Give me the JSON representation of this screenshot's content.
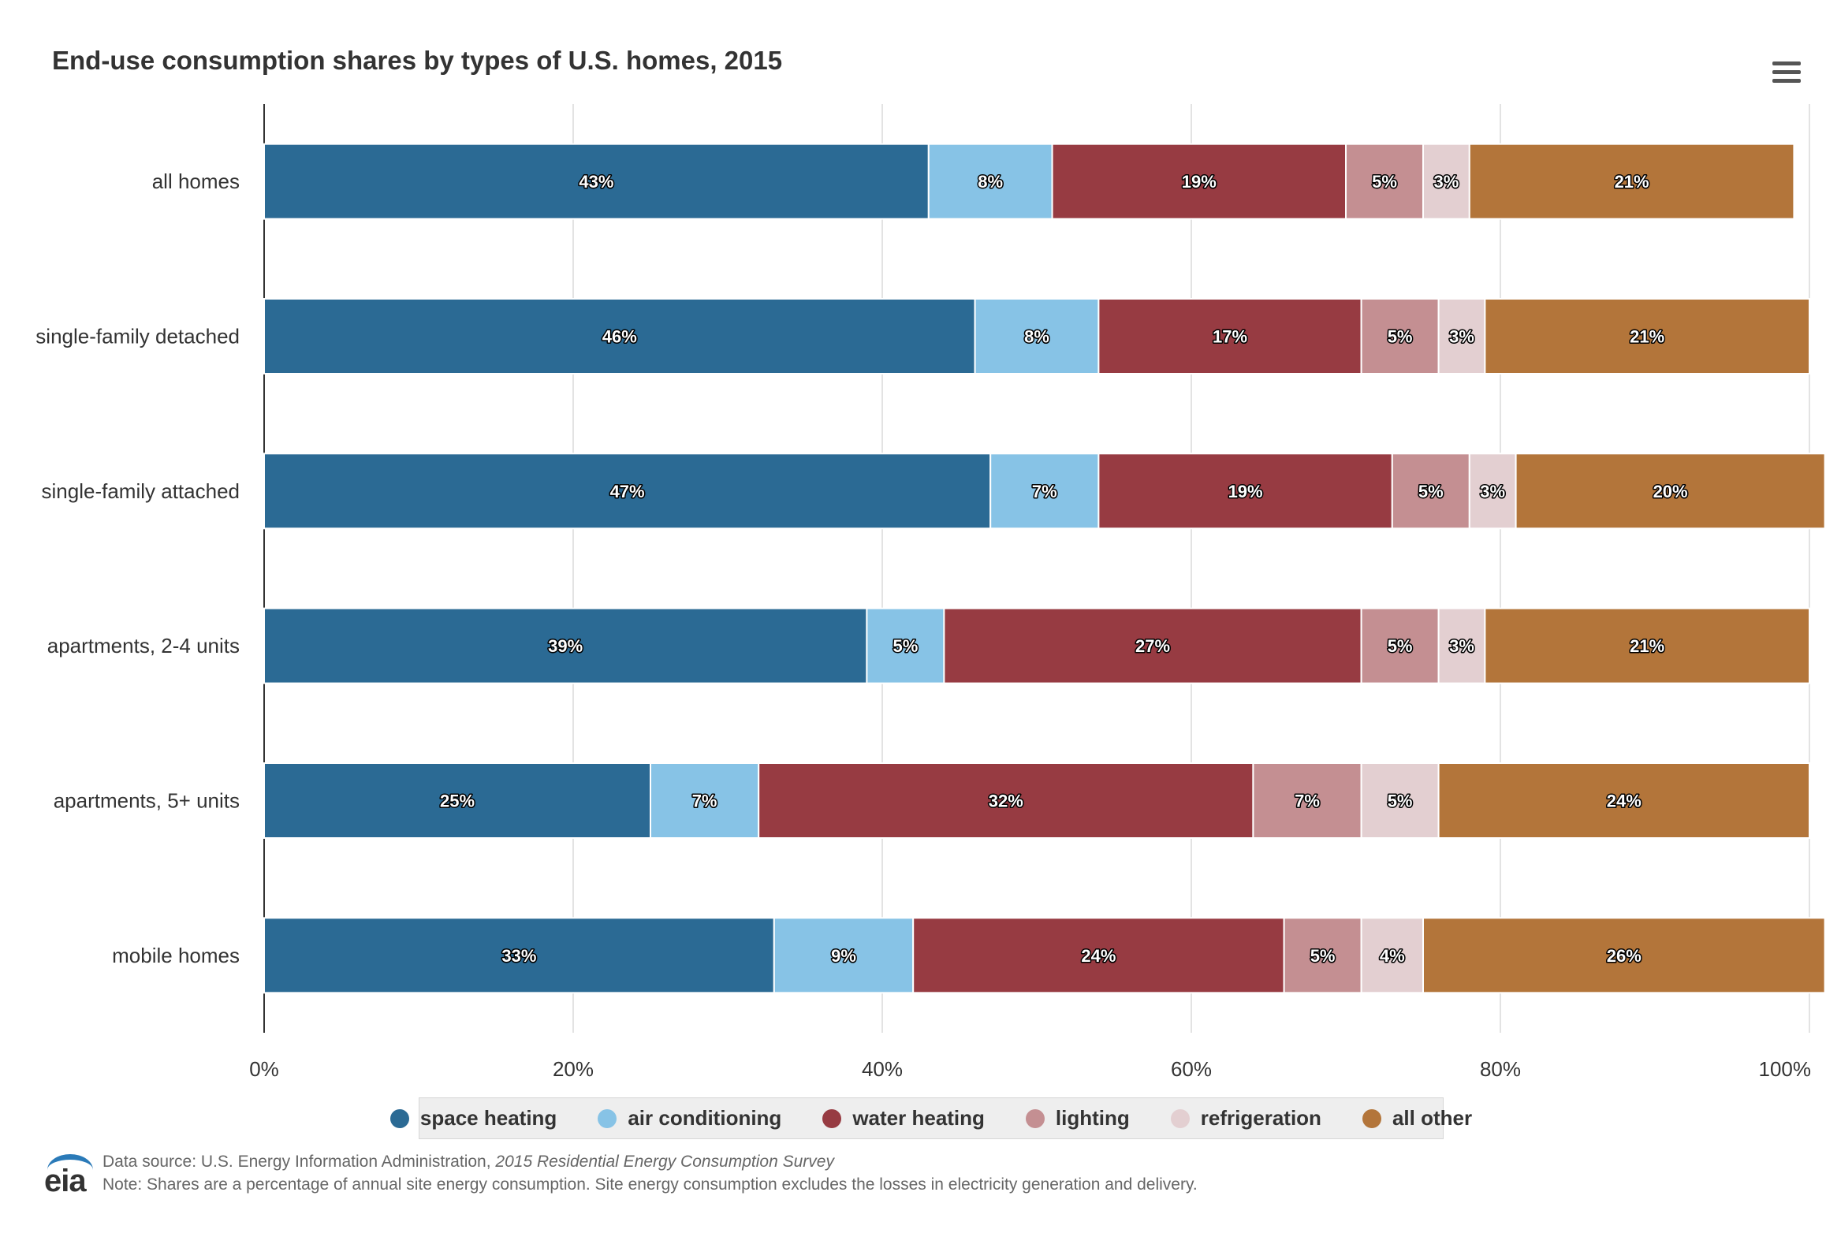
{
  "chart_data": {
    "type": "bar",
    "orientation": "horizontal",
    "stacked": true,
    "title": "End-use consumption shares by types of U.S. homes, 2015",
    "xlabel": "",
    "ylabel": "",
    "xlim": [
      0,
      100
    ],
    "x_ticks": [
      "0%",
      "20%",
      "40%",
      "60%",
      "80%",
      "100%"
    ],
    "grid": true,
    "legend_position": "bottom",
    "categories": [
      "all homes",
      "single-family detached",
      "single-family attached",
      "apartments, 2-4 units",
      "apartments, 5+ units",
      "mobile homes"
    ],
    "series": [
      {
        "name": "space heating",
        "color": "#2b6a94",
        "values": [
          43,
          46,
          47,
          39,
          25,
          33
        ]
      },
      {
        "name": "air conditioning",
        "color": "#87c3e6",
        "values": [
          8,
          8,
          7,
          5,
          7,
          9
        ]
      },
      {
        "name": "water heating",
        "color": "#973b42",
        "values": [
          19,
          17,
          19,
          27,
          32,
          24
        ]
      },
      {
        "name": "lighting",
        "color": "#c48f92",
        "values": [
          5,
          5,
          5,
          5,
          7,
          5
        ]
      },
      {
        "name": "refrigeration",
        "color": "#e3cfd1",
        "values": [
          3,
          3,
          3,
          3,
          5,
          4
        ]
      },
      {
        "name": "all other",
        "color": "#b3753a",
        "values": [
          21,
          21,
          20,
          21,
          24,
          26
        ]
      }
    ]
  },
  "footer": {
    "logo_text": "eia",
    "source_prefix": "Data source: U.S. Energy Information Administration, ",
    "source_title": "2015 Residential Energy Consumption Survey",
    "note": "Note: Shares are a percentage of annual site energy consumption. Site energy consumption excludes the losses in electricity generation and delivery."
  },
  "menu": {
    "icon": "hamburger-menu-icon"
  }
}
